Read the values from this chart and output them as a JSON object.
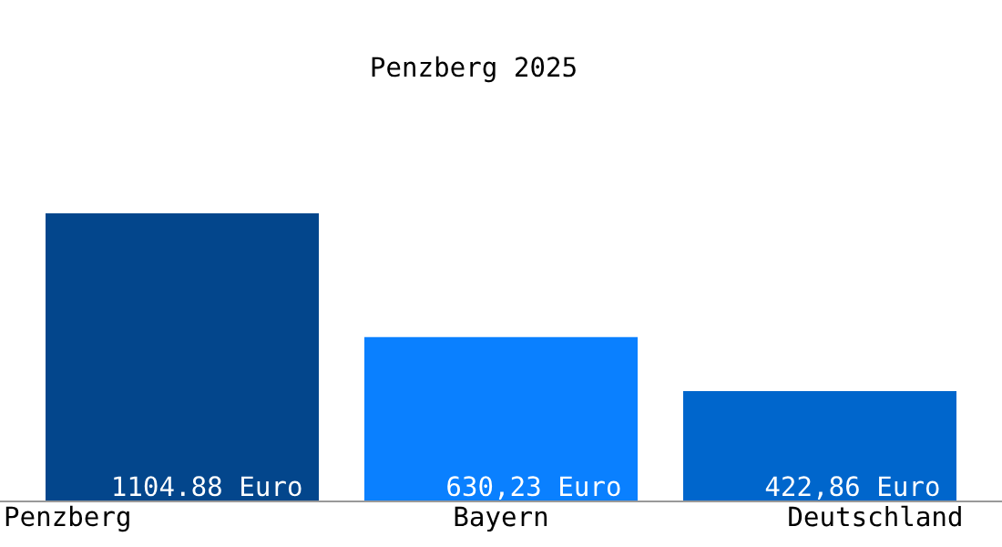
{
  "chart_data": {
    "type": "bar",
    "title": "Penzberg 2025",
    "categories": [
      "Penzberg",
      "Bayern",
      "Deutschland"
    ],
    "values": [
      1104.88,
      630.23,
      422.86
    ],
    "colors": [
      "#03468c",
      "#0a80ff",
      "#0066cc"
    ],
    "value_labels": [
      "1104.88 Euro",
      "630,23 Euro",
      "422,86 Euro"
    ],
    "legend": false
  }
}
